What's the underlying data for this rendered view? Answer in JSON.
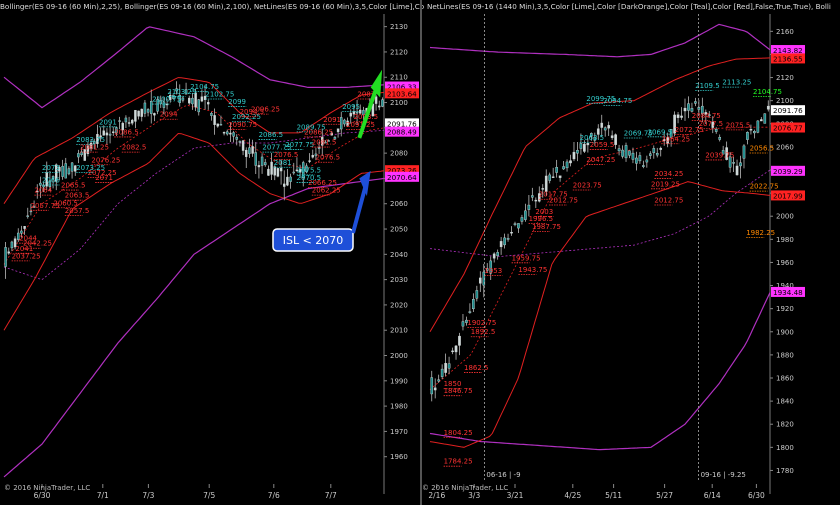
{
  "chart_data": [
    {
      "type": "candlestick",
      "title": "Bollinger(ES 09-16 (60 Min),2,25), Bollinger(ES 09-16 (60 Min),2,100), NetLines(ES 09-16 (60 Min),3,5,Color [Lime],Co",
      "ylim": [
        1950,
        2135
      ],
      "yticks": [
        1960,
        1970,
        1980,
        1990,
        2000,
        2010,
        2020,
        2030,
        2040,
        2050,
        2060,
        2070,
        2080,
        2090,
        2100,
        2110,
        2120,
        2130
      ],
      "xticks": [
        "6/30",
        "7/1",
        "7/3",
        "7/5",
        "7/6",
        "7/7"
      ],
      "copyright": "© 2016 NinjaTrader, LLC",
      "annotation": "ISL < 2070",
      "price_markers": [
        {
          "label": "2106.33",
          "value": 2106.33,
          "color": "#ff33ff"
        },
        {
          "label": "2103.64",
          "value": 2103.64,
          "color": "#ff2222"
        },
        {
          "label": "2091.76",
          "value": 2091.76,
          "color": "#ffffff"
        },
        {
          "label": "2088.49",
          "value": 2088.49,
          "color": "#ff33ff"
        },
        {
          "label": "2073.26",
          "value": 2073.26,
          "color": "#ff2222"
        },
        {
          "label": "2070.64",
          "value": 2070.64,
          "color": "#ff33ff"
        }
      ],
      "netline_labels": [
        {
          "text": "2037.25",
          "x": 0.02,
          "y": 2038,
          "color": "#ff3333"
        },
        {
          "text": "2044",
          "x": 0.04,
          "y": 2045,
          "color": "#ff3333"
        },
        {
          "text": "2042.25",
          "x": 0.05,
          "y": 2043,
          "color": "#ff3333"
        },
        {
          "text": "2041",
          "x": 0.03,
          "y": 2041,
          "color": "#ff3333"
        },
        {
          "text": "2057.75",
          "x": 0.07,
          "y": 2058,
          "color": "#ff3333"
        },
        {
          "text": "2064",
          "x": 0.08,
          "y": 2064,
          "color": "#ff3333"
        },
        {
          "text": "2073",
          "x": 0.1,
          "y": 2073,
          "color": "#33cccc"
        },
        {
          "text": "2066",
          "x": 0.1,
          "y": 2068,
          "color": "#33cccc"
        },
        {
          "text": "2065.5",
          "x": 0.15,
          "y": 2066,
          "color": "#ff3333"
        },
        {
          "text": "2063.5",
          "x": 0.16,
          "y": 2062,
          "color": "#ff3333"
        },
        {
          "text": "2060.5",
          "x": 0.13,
          "y": 2059,
          "color": "#ff3333"
        },
        {
          "text": "2057.5",
          "x": 0.16,
          "y": 2056,
          "color": "#ff3333"
        },
        {
          "text": "2073.25",
          "x": 0.19,
          "y": 2073,
          "color": "#33cccc"
        },
        {
          "text": "2076.25",
          "x": 0.23,
          "y": 2076,
          "color": "#ff3333"
        },
        {
          "text": "2072.25",
          "x": 0.22,
          "y": 2071,
          "color": "#ff3333"
        },
        {
          "text": "2071",
          "x": 0.24,
          "y": 2069,
          "color": "#ff3333"
        },
        {
          "text": "2083.75",
          "x": 0.19,
          "y": 2084,
          "color": "#33cccc"
        },
        {
          "text": "2081.25",
          "x": 0.2,
          "y": 2081,
          "color": "#ff3333"
        },
        {
          "text": "2091",
          "x": 0.25,
          "y": 2091,
          "color": "#33cccc"
        },
        {
          "text": "2086.5",
          "x": 0.29,
          "y": 2087,
          "color": "#ff3333"
        },
        {
          "text": "2082.5",
          "x": 0.31,
          "y": 2081,
          "color": "#ff3333"
        },
        {
          "text": "2094",
          "x": 0.41,
          "y": 2094,
          "color": "#ff3333"
        },
        {
          "text": "2100.75",
          "x": 0.39,
          "y": 2100,
          "color": "#33cccc"
        },
        {
          "text": "2103.25",
          "x": 0.43,
          "y": 2103,
          "color": "#33cccc"
        },
        {
          "text": "2104.75",
          "x": 0.49,
          "y": 2105,
          "color": "#33cccc"
        },
        {
          "text": "2102.75",
          "x": 0.53,
          "y": 2102,
          "color": "#33cccc"
        },
        {
          "text": "2099",
          "x": 0.59,
          "y": 2099,
          "color": "#33cccc"
        },
        {
          "text": "2092.25",
          "x": 0.6,
          "y": 2093,
          "color": "#33cccc"
        },
        {
          "text": "2090.75",
          "x": 0.59,
          "y": 2090,
          "color": "#ff3333"
        },
        {
          "text": "2094.5",
          "x": 0.62,
          "y": 2095,
          "color": "#ff3333"
        },
        {
          "text": "2096.25",
          "x": 0.65,
          "y": 2096,
          "color": "#ff3333"
        },
        {
          "text": "2086.5",
          "x": 0.67,
          "y": 2086,
          "color": "#33cccc"
        },
        {
          "text": "2077.75",
          "x": 0.68,
          "y": 2081,
          "color": "#33cccc"
        },
        {
          "text": "2076.5",
          "x": 0.71,
          "y": 2078,
          "color": "#ff3333"
        },
        {
          "text": "2081",
          "x": 0.71,
          "y": 2075,
          "color": "#33cccc"
        },
        {
          "text": "2077.75",
          "x": 0.74,
          "y": 2082,
          "color": "#33cccc"
        },
        {
          "text": "2089.75",
          "x": 0.77,
          "y": 2089,
          "color": "#33cccc"
        },
        {
          "text": "2086.25",
          "x": 0.79,
          "y": 2087,
          "color": "#ff3333"
        },
        {
          "text": "2081.5",
          "x": 0.81,
          "y": 2083,
          "color": "#ff3333"
        },
        {
          "text": "2076.5",
          "x": 0.82,
          "y": 2077,
          "color": "#ff3333"
        },
        {
          "text": "2075.5",
          "x": 0.77,
          "y": 2072,
          "color": "#33cccc"
        },
        {
          "text": "2070.5",
          "x": 0.77,
          "y": 2069,
          "color": "#33cccc"
        },
        {
          "text": "2066.25",
          "x": 0.8,
          "y": 2067,
          "color": "#ff3333"
        },
        {
          "text": "2062.25",
          "x": 0.81,
          "y": 2064,
          "color": "#ff3333"
        },
        {
          "text": "2091.25",
          "x": 0.9,
          "y": 2090,
          "color": "#ff3333"
        },
        {
          "text": "2093.5",
          "x": 0.92,
          "y": 2093,
          "color": "#ff3333"
        },
        {
          "text": "2095",
          "x": 0.89,
          "y": 2097,
          "color": "#33cccc"
        },
        {
          "text": "2091",
          "x": 0.84,
          "y": 2092,
          "color": "#ff3333"
        },
        {
          "text": "2087",
          "x": 0.93,
          "y": 2102,
          "color": "#ff3333"
        }
      ]
    },
    {
      "type": "candlestick",
      "title": "NetLines(ES 09-16 (1440 Min),3,5,Color [Lime],Color [DarkOrange],Color [Teal],Color [Red],False,True,True), Bolli",
      "ylim": [
        1770,
        2175
      ],
      "yticks": [
        1780,
        1800,
        1820,
        1840,
        1860,
        1880,
        1900,
        1920,
        1940,
        1960,
        1980,
        2000,
        2020,
        2040,
        2060,
        2080,
        2100,
        2120,
        2140,
        2160
      ],
      "xticks": [
        "2/16",
        "3/3",
        "3/21",
        "4/25",
        "5/11",
        "5/27",
        "6/14",
        "6/30"
      ],
      "copyright": "© 2016 NinjaTrader, LLC",
      "contract_dividers": [
        {
          "label": "06-16 | -9",
          "x": 0.16
        },
        {
          "label": "09-16 | -9.25",
          "x": 0.79
        }
      ],
      "price_markers": [
        {
          "label": "2143.82",
          "value": 2143.82,
          "color": "#ff33ff"
        },
        {
          "label": "2136.55",
          "value": 2136.55,
          "color": "#ff2222"
        },
        {
          "label": "2091.76",
          "value": 2091.76,
          "color": "#ffffff"
        },
        {
          "label": "2076.77",
          "value": 2076.77,
          "color": "#ff2222"
        },
        {
          "label": "2039.29",
          "value": 2039.29,
          "color": "#ff33ff"
        },
        {
          "label": "2017.99",
          "value": 2017.99,
          "color": "#ff2222"
        },
        {
          "label": "1934.48",
          "value": 1934.48,
          "color": "#ff33ff"
        }
      ],
      "netline_labels": [
        {
          "text": "2104.75",
          "x": 0.95,
          "y": 2105,
          "color": "#22ff22"
        },
        {
          "text": "2056.5",
          "x": 0.94,
          "y": 2056,
          "color": "#ff8800"
        },
        {
          "text": "2022.75",
          "x": 0.94,
          "y": 2023,
          "color": "#ff8800"
        },
        {
          "text": "1982.25",
          "x": 0.93,
          "y": 1983,
          "color": "#ff8800"
        },
        {
          "text": "2113.25",
          "x": 0.86,
          "y": 2113,
          "color": "#33cccc"
        },
        {
          "text": "2109.5",
          "x": 0.78,
          "y": 2110,
          "color": "#33cccc"
        },
        {
          "text": "2084.75",
          "x": 0.77,
          "y": 2084,
          "color": "#ff3333"
        },
        {
          "text": "2077.5",
          "x": 0.79,
          "y": 2077,
          "color": "#ff3333"
        },
        {
          "text": "2072.75",
          "x": 0.72,
          "y": 2072,
          "color": "#ff3333"
        },
        {
          "text": "2075.5",
          "x": 0.87,
          "y": 2076,
          "color": "#ff3333"
        },
        {
          "text": "2039.75",
          "x": 0.81,
          "y": 2050,
          "color": "#ff3333"
        },
        {
          "text": "2099.75",
          "x": 0.46,
          "y": 2099,
          "color": "#33cccc"
        },
        {
          "text": "2094.75",
          "x": 0.51,
          "y": 2097,
          "color": "#33cccc"
        },
        {
          "text": "2069.75",
          "x": 0.57,
          "y": 2069,
          "color": "#33cccc"
        },
        {
          "text": "2069.5",
          "x": 0.64,
          "y": 2070,
          "color": "#33cccc"
        },
        {
          "text": "2063.5",
          "x": 0.44,
          "y": 2065,
          "color": "#33cccc"
        },
        {
          "text": "2064.25",
          "x": 0.68,
          "y": 2064,
          "color": "#ff3333"
        },
        {
          "text": "2059.5",
          "x": 0.47,
          "y": 2059,
          "color": "#ff3333"
        },
        {
          "text": "2047.25",
          "x": 0.46,
          "y": 2046,
          "color": "#ff3333"
        },
        {
          "text": "2034.25",
          "x": 0.66,
          "y": 2034,
          "color": "#ff3333"
        },
        {
          "text": "2019.25",
          "x": 0.65,
          "y": 2025,
          "color": "#ff3333"
        },
        {
          "text": "2012.75",
          "x": 0.66,
          "y": 2011,
          "color": "#ff3333"
        },
        {
          "text": "2023.75",
          "x": 0.42,
          "y": 2024,
          "color": "#ff3333"
        },
        {
          "text": "2012.75",
          "x": 0.35,
          "y": 2011,
          "color": "#ff3333"
        },
        {
          "text": "2017.75",
          "x": 0.32,
          "y": 2016,
          "color": "#ff3333"
        },
        {
          "text": "2003",
          "x": 0.31,
          "y": 2001,
          "color": "#ff3333"
        },
        {
          "text": "1996.5",
          "x": 0.29,
          "y": 1995,
          "color": "#ff3333"
        },
        {
          "text": "1987.75",
          "x": 0.3,
          "y": 1988,
          "color": "#ff3333"
        },
        {
          "text": "1959.75",
          "x": 0.24,
          "y": 1961,
          "color": "#ff3333"
        },
        {
          "text": "1943.75",
          "x": 0.26,
          "y": 1951,
          "color": "#ff3333"
        },
        {
          "text": "1953",
          "x": 0.16,
          "y": 1950,
          "color": "#ff3333"
        },
        {
          "text": "1902.75",
          "x": 0.11,
          "y": 1905,
          "color": "#ff3333"
        },
        {
          "text": "1892.5",
          "x": 0.12,
          "y": 1897,
          "color": "#ff3333"
        },
        {
          "text": "1862.5",
          "x": 0.1,
          "y": 1866,
          "color": "#ff3333"
        },
        {
          "text": "1850",
          "x": 0.04,
          "y": 1852,
          "color": "#ff3333"
        },
        {
          "text": "1846.75",
          "x": 0.04,
          "y": 1846,
          "color": "#ff3333"
        },
        {
          "text": "1804.25",
          "x": 0.04,
          "y": 1810,
          "color": "#ff3333"
        },
        {
          "text": "1784.25",
          "x": 0.04,
          "y": 1785,
          "color": "#ff3333"
        }
      ]
    }
  ]
}
